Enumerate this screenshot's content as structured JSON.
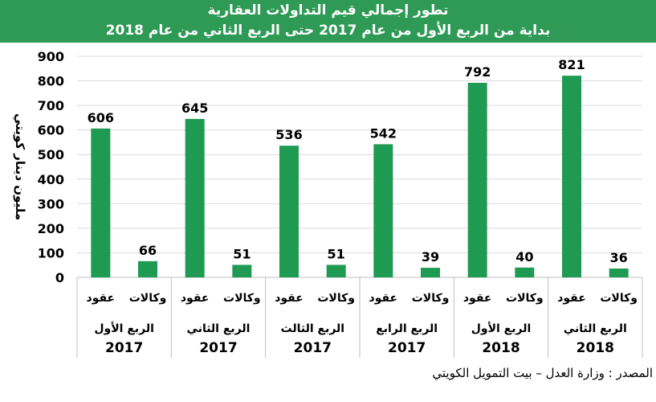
{
  "title_line1": "تطور إجمالي قيم التداولات العقارية",
  "title_line2": "بداية من الربع الأول من عام 2017 حتى الربع الثاني من عام 2018",
  "source": "المصدر : وزارة العدل – بيت التمويل الكويتي",
  "colors": {
    "bar": "#1e9a52",
    "header": "#2e9a55",
    "grid": "#d9d9d9"
  },
  "chart_data": {
    "type": "bar",
    "ylabel": "مليون دينار كويتي",
    "ylim": [
      0,
      900
    ],
    "yticks": [
      0,
      100,
      200,
      300,
      400,
      500,
      600,
      700,
      800,
      900
    ],
    "grid": true,
    "groups": [
      {
        "quarter": "الربع الأول",
        "year": "2017",
        "bars": [
          {
            "label": "عقود",
            "value": 606
          },
          {
            "label": "وكالات",
            "value": 66
          }
        ]
      },
      {
        "quarter": "الربع الثاني",
        "year": "2017",
        "bars": [
          {
            "label": "عقود",
            "value": 645
          },
          {
            "label": "وكالات",
            "value": 51
          }
        ]
      },
      {
        "quarter": "الربع الثالث",
        "year": "2017",
        "bars": [
          {
            "label": "عقود",
            "value": 536
          },
          {
            "label": "وكالات",
            "value": 51
          }
        ]
      },
      {
        "quarter": "الربع الرابع",
        "year": "2017",
        "bars": [
          {
            "label": "عقود",
            "value": 542
          },
          {
            "label": "وكالات",
            "value": 39
          }
        ]
      },
      {
        "quarter": "الربع الأول",
        "year": "2018",
        "bars": [
          {
            "label": "عقود",
            "value": 792
          },
          {
            "label": "وكالات",
            "value": 40
          }
        ]
      },
      {
        "quarter": "الربع الثاني",
        "year": "2018",
        "bars": [
          {
            "label": "عقود",
            "value": 821
          },
          {
            "label": "وكالات",
            "value": 36
          }
        ]
      }
    ]
  }
}
